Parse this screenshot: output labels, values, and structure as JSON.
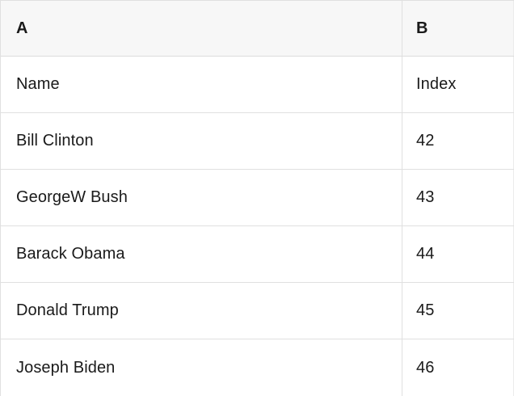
{
  "table": {
    "column_headers": [
      "A",
      "B"
    ],
    "rows": [
      {
        "a": "Name",
        "b": "Index"
      },
      {
        "a": "Bill Clinton",
        "b": "42"
      },
      {
        "a": "GeorgeW Bush",
        "b": "43"
      },
      {
        "a": "Barack Obama",
        "b": "44"
      },
      {
        "a": "Donald Trump",
        "b": "45"
      },
      {
        "a": "Joseph Biden",
        "b": "46"
      }
    ]
  },
  "colors": {
    "header_bg": "#f7f7f7",
    "row_bg": "#ffffff",
    "border": "#e0e0e0",
    "header_border": "#dcdcdc",
    "edge_border": "#ececec",
    "text": "#1a1a1a"
  }
}
